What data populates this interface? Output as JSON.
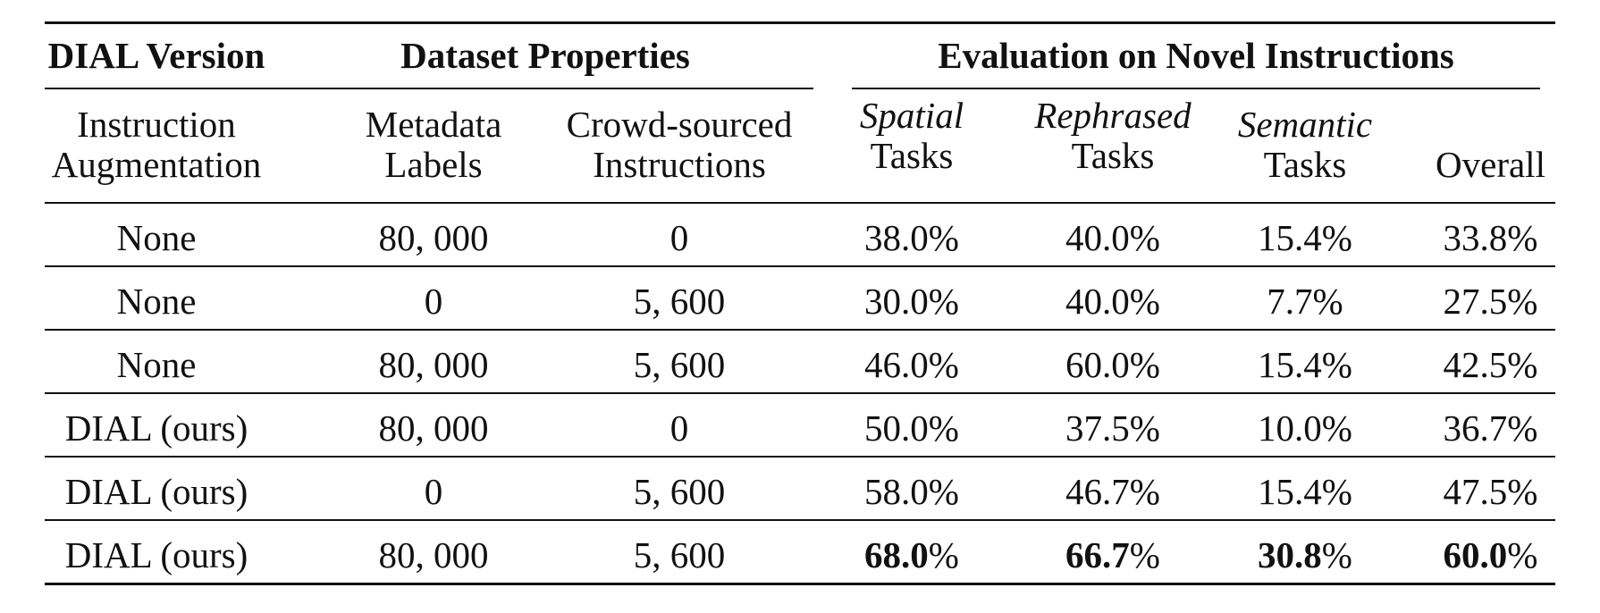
{
  "groups": {
    "version": "DIAL Version",
    "dataset": "Dataset Properties",
    "evaluation": "Evaluation on Novel Instructions"
  },
  "columns": [
    {
      "line1": "Instruction",
      "line2": "Augmentation"
    },
    {
      "line1": "Metadata",
      "line2": "Labels"
    },
    {
      "line1": "Crowd-sourced",
      "line2": "Instructions"
    },
    {
      "line1": "Spatial",
      "line2": "Tasks"
    },
    {
      "line1": "Rephrased",
      "line2": "Tasks"
    },
    {
      "line1": "Semantic",
      "line2": "Tasks"
    },
    {
      "line1": "",
      "line2": "Overall"
    }
  ],
  "rows": [
    [
      "None",
      "80, 000",
      "0",
      "38.0%",
      "40.0%",
      "15.4%",
      "33.8%"
    ],
    [
      "None",
      "0",
      "5, 600",
      "30.0%",
      "40.0%",
      "7.7%",
      "27.5%"
    ],
    [
      "None",
      "80, 000",
      "5, 600",
      "46.0%",
      "60.0%",
      "15.4%",
      "42.5%"
    ],
    [
      "DIAL (ours)",
      "80, 000",
      "0",
      "50.0%",
      "37.5%",
      "10.0%",
      "36.7%"
    ],
    [
      "DIAL (ours)",
      "0",
      "5, 600",
      "58.0%",
      "46.7%",
      "15.4%",
      "47.5%"
    ],
    [
      "DIAL (ours)",
      "80, 000",
      "5, 600",
      "68.0",
      "66.7",
      "30.8",
      "60.0"
    ]
  ],
  "last_row_suffix": "%"
}
